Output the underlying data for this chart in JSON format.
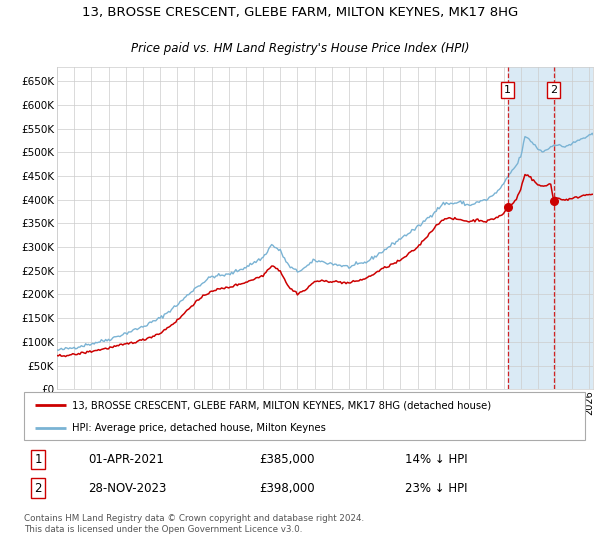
{
  "title": "13, BROSSE CRESCENT, GLEBE FARM, MILTON KEYNES, MK17 8HG",
  "subtitle": "Price paid vs. HM Land Registry's House Price Index (HPI)",
  "ylim": [
    0,
    680000
  ],
  "yticks": [
    0,
    50000,
    100000,
    150000,
    200000,
    250000,
    300000,
    350000,
    400000,
    450000,
    500000,
    550000,
    600000,
    650000
  ],
  "xlim_start": 1995.0,
  "xlim_end": 2026.2,
  "hpi_color": "#7ab3d4",
  "price_color": "#cc0000",
  "bg_color": "#ffffff",
  "grid_color": "#cccccc",
  "highlight_bg": "#daeaf5",
  "sale1_date": 2021.25,
  "sale1_price": 385000,
  "sale1_label": "01-APR-2021",
  "sale1_pct": "14% ↓ HPI",
  "sale2_date": 2023.92,
  "sale2_price": 398000,
  "sale2_label": "28-NOV-2023",
  "sale2_pct": "23% ↓ HPI",
  "legend_line1": "13, BROSSE CRESCENT, GLEBE FARM, MILTON KEYNES, MK17 8HG (detached house)",
  "legend_line2": "HPI: Average price, detached house, Milton Keynes",
  "footnote": "Contains HM Land Registry data © Crown copyright and database right 2024.\nThis data is licensed under the Open Government Licence v3.0.",
  "title_fontsize": 9.5,
  "subtitle_fontsize": 8.5,
  "hpi_anchors": [
    [
      1995.0,
      82000
    ],
    [
      1996.0,
      88000
    ],
    [
      1997.0,
      96000
    ],
    [
      1998.0,
      105000
    ],
    [
      1999.0,
      118000
    ],
    [
      2000.0,
      132000
    ],
    [
      2001.0,
      150000
    ],
    [
      2002.0,
      178000
    ],
    [
      2003.0,
      212000
    ],
    [
      2004.0,
      238000
    ],
    [
      2005.0,
      242000
    ],
    [
      2006.0,
      258000
    ],
    [
      2007.0,
      278000
    ],
    [
      2007.5,
      305000
    ],
    [
      2008.0,
      292000
    ],
    [
      2008.5,
      260000
    ],
    [
      2009.0,
      248000
    ],
    [
      2009.5,
      258000
    ],
    [
      2010.0,
      272000
    ],
    [
      2011.0,
      265000
    ],
    [
      2012.0,
      258000
    ],
    [
      2013.0,
      268000
    ],
    [
      2014.0,
      292000
    ],
    [
      2015.0,
      318000
    ],
    [
      2016.0,
      342000
    ],
    [
      2017.0,
      375000
    ],
    [
      2017.5,
      392000
    ],
    [
      2018.0,
      392000
    ],
    [
      2018.5,
      395000
    ],
    [
      2019.0,
      388000
    ],
    [
      2019.5,
      395000
    ],
    [
      2020.0,
      400000
    ],
    [
      2020.5,
      412000
    ],
    [
      2021.0,
      432000
    ],
    [
      2021.25,
      448000
    ],
    [
      2021.5,
      462000
    ],
    [
      2021.75,
      472000
    ],
    [
      2022.0,
      492000
    ],
    [
      2022.25,
      532000
    ],
    [
      2022.5,
      528000
    ],
    [
      2022.75,
      518000
    ],
    [
      2023.0,
      508000
    ],
    [
      2023.25,
      502000
    ],
    [
      2023.5,
      505000
    ],
    [
      2023.75,
      512000
    ],
    [
      2023.92,
      518000
    ],
    [
      2024.0,
      516000
    ],
    [
      2024.5,
      512000
    ],
    [
      2025.0,
      518000
    ],
    [
      2025.5,
      528000
    ],
    [
      2026.0,
      535000
    ],
    [
      2026.2,
      537000
    ]
  ],
  "price_anchors": [
    [
      1995.0,
      70000
    ],
    [
      1996.0,
      73000
    ],
    [
      1997.0,
      80000
    ],
    [
      1998.0,
      87000
    ],
    [
      1999.0,
      95000
    ],
    [
      2000.0,
      104000
    ],
    [
      2001.0,
      118000
    ],
    [
      2002.0,
      145000
    ],
    [
      2003.0,
      182000
    ],
    [
      2004.0,
      208000
    ],
    [
      2005.0,
      215000
    ],
    [
      2006.0,
      226000
    ],
    [
      2007.0,
      240000
    ],
    [
      2007.5,
      262000
    ],
    [
      2008.0,
      250000
    ],
    [
      2008.5,
      215000
    ],
    [
      2009.0,
      202000
    ],
    [
      2009.5,
      210000
    ],
    [
      2010.0,
      228000
    ],
    [
      2011.0,
      228000
    ],
    [
      2012.0,
      224000
    ],
    [
      2013.0,
      234000
    ],
    [
      2014.0,
      255000
    ],
    [
      2015.0,
      272000
    ],
    [
      2016.0,
      300000
    ],
    [
      2017.0,
      342000
    ],
    [
      2017.5,
      360000
    ],
    [
      2018.0,
      360000
    ],
    [
      2018.5,
      358000
    ],
    [
      2019.0,
      354000
    ],
    [
      2019.5,
      358000
    ],
    [
      2020.0,
      354000
    ],
    [
      2020.5,
      361000
    ],
    [
      2021.0,
      370000
    ],
    [
      2021.25,
      385000
    ],
    [
      2021.5,
      390000
    ],
    [
      2021.75,
      402000
    ],
    [
      2022.0,
      422000
    ],
    [
      2022.25,
      455000
    ],
    [
      2022.5,
      450000
    ],
    [
      2022.75,
      440000
    ],
    [
      2023.0,
      432000
    ],
    [
      2023.25,
      428000
    ],
    [
      2023.5,
      430000
    ],
    [
      2023.75,
      435000
    ],
    [
      2023.92,
      398000
    ],
    [
      2024.0,
      405000
    ],
    [
      2024.5,
      400000
    ],
    [
      2025.0,
      402000
    ],
    [
      2025.5,
      408000
    ],
    [
      2026.0,
      412000
    ],
    [
      2026.2,
      413000
    ]
  ]
}
